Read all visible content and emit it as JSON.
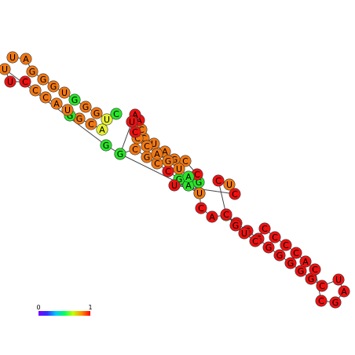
{
  "diagram": {
    "type": "rna-secondary-structure",
    "colormap": {
      "min_label": "0",
      "max_label": "1",
      "stops": [
        "#7a00ff",
        "#3030ff",
        "#00c8ff",
        "#00ff60",
        "#c8ff00",
        "#ff9000",
        "#ff0000"
      ]
    },
    "color_levels": {
      "red": "#ee1111",
      "darkorange": "#f0500a",
      "orange": "#f07814",
      "lightorange": "#f5a01e",
      "yellow": "#e6f032",
      "lime": "#a0f040",
      "green": "#28e628"
    },
    "nucleotides": [
      {
        "b": "U",
        "c": "orange"
      },
      {
        "b": "A",
        "c": "orange"
      },
      {
        "b": "G",
        "c": "orange"
      },
      {
        "b": "G",
        "c": "orange"
      },
      {
        "b": "G",
        "c": "orange"
      },
      {
        "b": "U",
        "c": "orange"
      },
      {
        "b": "G",
        "c": "green"
      },
      {
        "b": "G",
        "c": "orange"
      },
      {
        "b": "G",
        "c": "orange"
      },
      {
        "b": "U",
        "c": "yellow"
      },
      {
        "b": "C",
        "c": "green"
      },
      {
        "b": "A",
        "c": "yellow"
      },
      {
        "b": "C",
        "c": "orange"
      },
      {
        "b": "G",
        "c": "orange"
      },
      {
        "b": "G",
        "c": "green"
      },
      {
        "b": "U",
        "c": "orange"
      },
      {
        "b": "A",
        "c": "orange"
      },
      {
        "b": "C",
        "c": "orange"
      },
      {
        "b": "C",
        "c": "orange"
      },
      {
        "b": "C",
        "c": "red"
      },
      {
        "b": "U",
        "c": "red"
      },
      {
        "b": "U",
        "c": "orange"
      },
      {
        "b": "G",
        "c": "green"
      },
      {
        "b": "G",
        "c": "orange"
      },
      {
        "b": "C",
        "c": "orange"
      },
      {
        "b": "G",
        "c": "orange"
      },
      {
        "b": "C",
        "c": "orange"
      },
      {
        "b": "C",
        "c": "red"
      },
      {
        "b": "G",
        "c": "green"
      },
      {
        "b": "U",
        "c": "green"
      },
      {
        "b": "U",
        "c": "yellow"
      },
      {
        "b": "C",
        "c": "red"
      },
      {
        "b": "A",
        "c": "red"
      },
      {
        "b": "A",
        "c": "orange"
      },
      {
        "b": "G",
        "c": "red"
      },
      {
        "b": "G",
        "c": "red"
      },
      {
        "b": "G",
        "c": "red"
      },
      {
        "b": "G",
        "c": "red"
      },
      {
        "b": "G",
        "c": "red"
      },
      {
        "b": "G",
        "c": "red"
      },
      {
        "b": "G",
        "c": "red"
      },
      {
        "b": "G",
        "c": "red"
      },
      {
        "b": "C",
        "c": "red"
      },
      {
        "b": "U",
        "c": "red"
      },
      {
        "b": "A",
        "c": "red"
      },
      {
        "b": "G",
        "c": "red"
      },
      {
        "b": "C",
        "c": "red"
      },
      {
        "b": "C",
        "c": "red"
      },
      {
        "b": "A",
        "c": "red"
      },
      {
        "b": "C",
        "c": "red"
      },
      {
        "b": "C",
        "c": "red"
      },
      {
        "b": "C",
        "c": "red"
      },
      {
        "b": "C",
        "c": "red"
      },
      {
        "b": "C",
        "c": "red"
      },
      {
        "b": "U",
        "c": "red"
      },
      {
        "b": "G",
        "c": "red"
      },
      {
        "b": "C",
        "c": "red"
      },
      {
        "b": "C",
        "c": "red"
      },
      {
        "b": "U",
        "c": "orange"
      },
      {
        "b": "C",
        "c": "red"
      },
      {
        "b": "U",
        "c": "red"
      },
      {
        "b": "A",
        "c": "green"
      },
      {
        "b": "G",
        "c": "green"
      },
      {
        "b": "C",
        "c": "red"
      },
      {
        "b": "C",
        "c": "orange"
      },
      {
        "b": "G",
        "c": "orange"
      },
      {
        "b": "A",
        "c": "orange"
      },
      {
        "b": "U",
        "c": "orange"
      },
      {
        "b": "C",
        "c": "orange"
      },
      {
        "b": "C",
        "c": "orange"
      },
      {
        "b": "A",
        "c": "red"
      },
      {
        "b": "A",
        "c": "red"
      },
      {
        "b": "C",
        "c": "red"
      },
      {
        "b": "G",
        "c": "green"
      },
      {
        "b": "U",
        "c": "orange"
      },
      {
        "b": "A",
        "c": "green"
      },
      {
        "b": "U",
        "c": "orange"
      },
      {
        "b": "G",
        "c": "orange"
      },
      {
        "b": "A",
        "c": "orange"
      },
      {
        "b": "C",
        "c": "orange"
      },
      {
        "b": "C",
        "c": "orange"
      },
      {
        "b": "C",
        "c": "red"
      },
      {
        "b": "U",
        "c": "red"
      }
    ]
  }
}
